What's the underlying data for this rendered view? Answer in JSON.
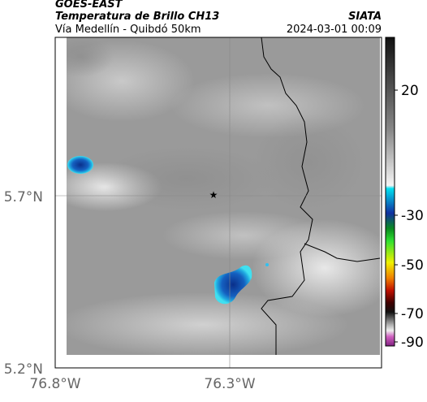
{
  "header": {
    "product": "GOES-EAST",
    "title": "Temperatura de Brillo CH13",
    "subtitle": "Vía Medellín - Quibdó 50km",
    "source": "SIATA",
    "timestamp": "2024-03-01 00:09"
  },
  "map": {
    "lat_labels": [
      "5.7°N",
      "5.2°N"
    ],
    "lon_labels": [
      "76.8°W",
      "76.3°W"
    ]
  },
  "colorbar": {
    "ticks": [
      20,
      -30,
      -50,
      -70,
      -90
    ]
  }
}
